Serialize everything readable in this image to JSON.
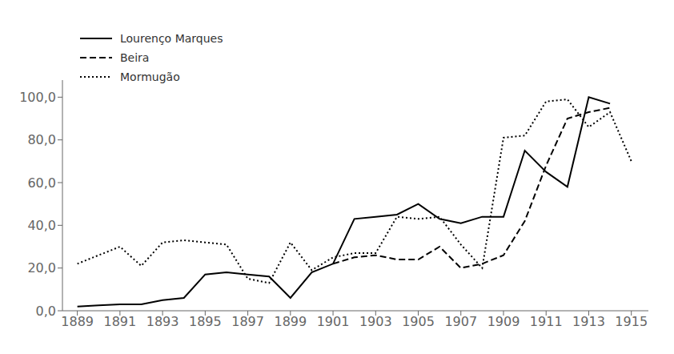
{
  "chart_data": {
    "type": "line",
    "x": [
      1889,
      1890,
      1891,
      1892,
      1893,
      1894,
      1895,
      1896,
      1897,
      1898,
      1899,
      1900,
      1901,
      1902,
      1903,
      1904,
      1905,
      1906,
      1907,
      1908,
      1909,
      1910,
      1911,
      1912,
      1913,
      1914,
      1915
    ],
    "series": [
      {
        "name": "Lourenço Marques",
        "color": "#000000",
        "line_style": "solid",
        "values": [
          2,
          2.5,
          3,
          3,
          5,
          6,
          17,
          18,
          17,
          16,
          6,
          18,
          22,
          43,
          44,
          45,
          50,
          43,
          41,
          44,
          44,
          75,
          65,
          58,
          100,
          97,
          null
        ]
      },
      {
        "name": "Beira",
        "color": "#000000",
        "line_style": "dashed",
        "values": [
          null,
          null,
          null,
          null,
          null,
          null,
          null,
          null,
          null,
          null,
          null,
          null,
          22,
          25,
          26,
          24,
          24,
          30,
          20,
          22,
          26,
          42,
          68,
          90,
          93,
          95,
          null
        ]
      },
      {
        "name": "Mormugão",
        "color": "#000000",
        "line_style": "dotted",
        "values": [
          22,
          26,
          30,
          21,
          32,
          33,
          32,
          31,
          15,
          13,
          32,
          19,
          25,
          27,
          27,
          44,
          43,
          44,
          31,
          20,
          81,
          82,
          98,
          99,
          86,
          93,
          70
        ]
      }
    ],
    "xlim": [
      1888.3,
      1915.8
    ],
    "xticks": [
      1889,
      1891,
      1893,
      1895,
      1897,
      1899,
      1901,
      1903,
      1905,
      1907,
      1909,
      1911,
      1913,
      1915
    ],
    "ylim": [
      0,
      108
    ],
    "yticks": [
      {
        "value": 0,
        "label": "0,0"
      },
      {
        "value": 20,
        "label": "20,0"
      },
      {
        "value": 40,
        "label": "40,0"
      },
      {
        "value": 60,
        "label": "60,0"
      },
      {
        "value": 80,
        "label": "80,0"
      },
      {
        "value": 100,
        "label": "100,0"
      }
    ],
    "grid": false,
    "legend": "upper left"
  }
}
